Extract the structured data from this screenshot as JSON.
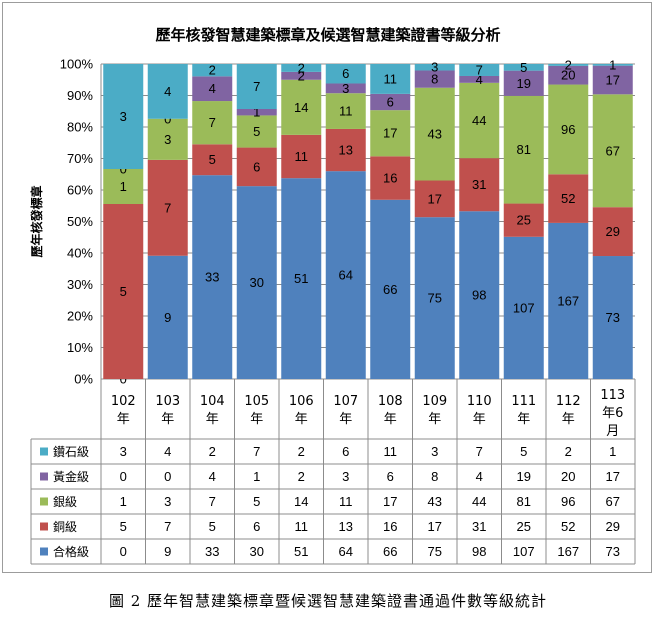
{
  "caption": "圖 2 歷年智慧建築標章暨候選智慧建築證書通過件數等級統計",
  "chart_data": {
    "type": "bar",
    "stacking": "percent",
    "title": "歷年核發智慧建築標章及候選智慧建築證書等級分析",
    "ylabel": "歷年核發標章",
    "ylim": [
      0,
      100
    ],
    "yticks": [
      "0%",
      "10%",
      "20%",
      "30%",
      "40%",
      "50%",
      "60%",
      "70%",
      "80%",
      "90%",
      "100%"
    ],
    "grid": true,
    "legend": "data-table-left",
    "categories": [
      [
        "102",
        "年"
      ],
      [
        "103",
        "年"
      ],
      [
        "104",
        "年"
      ],
      [
        "105",
        "年"
      ],
      [
        "106",
        "年"
      ],
      [
        "107",
        "年"
      ],
      [
        "108",
        "年"
      ],
      [
        "109",
        "年"
      ],
      [
        "110",
        "年"
      ],
      [
        "111",
        "年"
      ],
      [
        "112",
        "年"
      ],
      [
        "113",
        "年6",
        "月"
      ]
    ],
    "series": [
      {
        "name": "合格級",
        "color": "#4f81bd",
        "values": [
          0,
          9,
          33,
          30,
          51,
          64,
          66,
          75,
          98,
          107,
          167,
          73
        ]
      },
      {
        "name": "銅級",
        "color": "#c0504d",
        "values": [
          5,
          7,
          5,
          6,
          11,
          13,
          16,
          17,
          31,
          25,
          52,
          29
        ]
      },
      {
        "name": "銀級",
        "color": "#9bbb59",
        "values": [
          1,
          3,
          7,
          5,
          14,
          11,
          17,
          43,
          44,
          81,
          96,
          67
        ]
      },
      {
        "name": "黃金級",
        "color": "#8064a2",
        "values": [
          0,
          0,
          4,
          1,
          2,
          3,
          6,
          8,
          4,
          19,
          20,
          17
        ]
      },
      {
        "name": "鑽石級",
        "color": "#4bacc6",
        "values": [
          3,
          4,
          2,
          7,
          2,
          6,
          11,
          3,
          7,
          5,
          2,
          1
        ]
      }
    ]
  }
}
